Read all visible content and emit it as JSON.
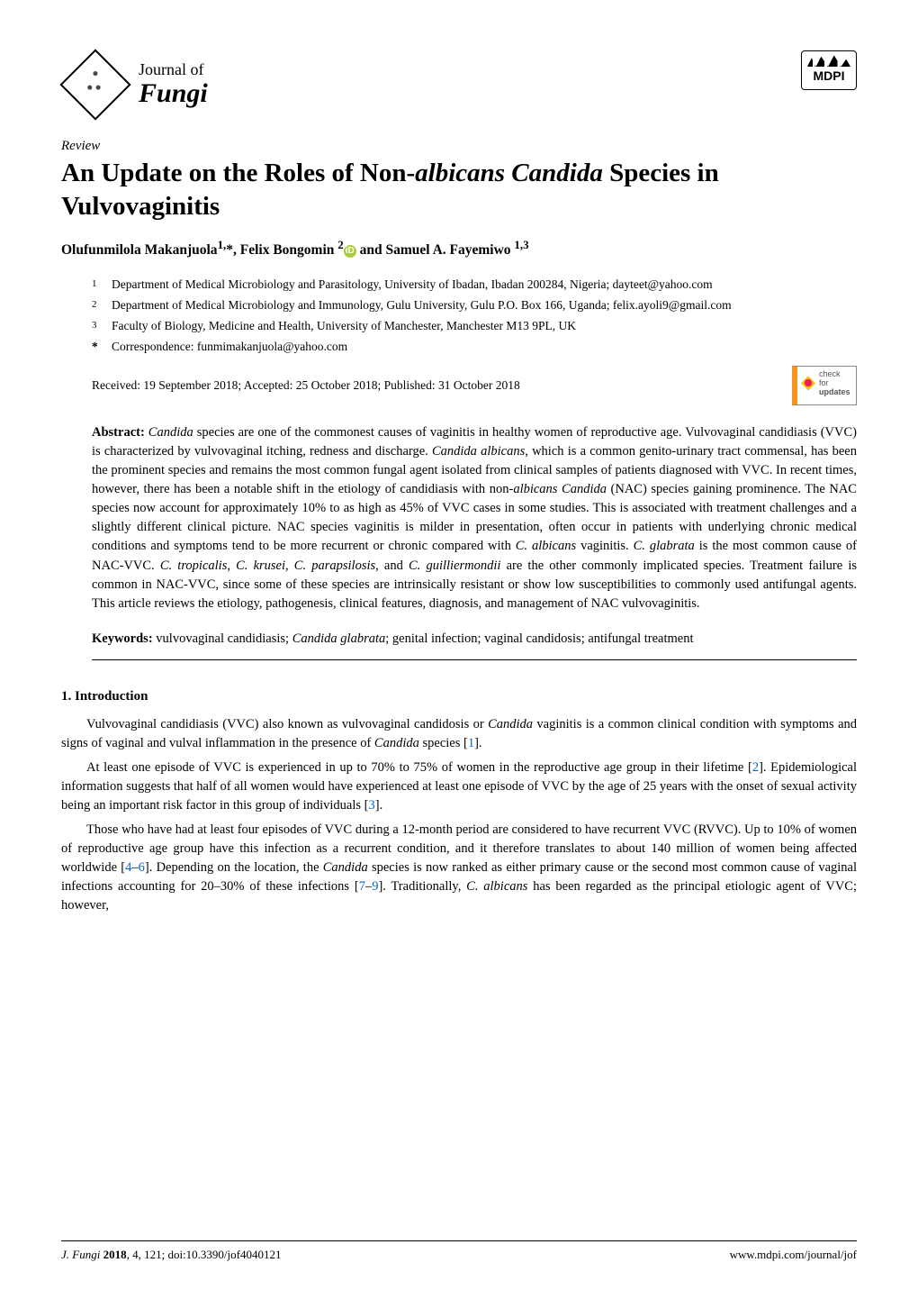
{
  "journal": {
    "prefix": "Journal of",
    "name": "Fungi",
    "publisher": "MDPI"
  },
  "article": {
    "type": "Review",
    "title_part1": "An Update on the Roles of Non-",
    "title_italic": "albicans Candida",
    "title_part2": "Species in Vulvovaginitis"
  },
  "authors": {
    "a1_name": "Olufunmilola Makanjuola",
    "a1_sup": "1,",
    "a1_star": "*",
    "a2_name": ", Felix Bongomin",
    "a2_sup": "2",
    "a3_name": " and Samuel A. Fayemiwo",
    "a3_sup": "1,3"
  },
  "affiliations": {
    "n1": "1",
    "t1": "Department of Medical Microbiology and Parasitology, University of Ibadan, Ibadan 200284, Nigeria; dayteet@yahoo.com",
    "n2": "2",
    "t2": "Department of Medical Microbiology and Immunology, Gulu University, Gulu P.O. Box 166, Uganda; felix.ayoli9@gmail.com",
    "n3": "3",
    "t3": "Faculty of Biology, Medicine and Health, University of Manchester, Manchester M13 9PL, UK",
    "corr_star": "*",
    "corr_text": "Correspondence: funmimakanjuola@yahoo.com"
  },
  "dates": "Received: 19 September 2018; Accepted: 25 October 2018; Published: 31 October 2018",
  "check_updates": {
    "line1": "check for",
    "line2": "updates"
  },
  "abstract": {
    "label": "Abstract:",
    "text_html": " <i>Candida</i> species are one of the commonest causes of vaginitis in healthy women of reproductive age. Vulvovaginal candidiasis (VVC) is characterized by vulvovaginal itching, redness and discharge. <i>Candida albicans</i>, which is a common genito-urinary tract commensal, has been the prominent species and remains the most common fungal agent isolated from clinical samples of patients diagnosed with VVC. In recent times, however, there has been a notable shift in the etiology of candidiasis with non-<i>albicans Candida</i> (NAC) species gaining prominence. The NAC species now account for approximately 10% to as high as 45% of VVC cases in some studies. This is associated with treatment challenges and a slightly different clinical picture. NAC species vaginitis is milder in presentation, often occur in patients with underlying chronic medical conditions and symptoms tend to be more recurrent or chronic compared with <i>C. albicans</i> vaginitis. <i>C. glabrata</i> is the most common cause of NAC-VVC. <i>C. tropicalis</i>, <i>C. krusei</i>, <i>C. parapsilosis</i>, and <i>C. guilliermondii</i> are the other commonly implicated species. Treatment failure is common in NAC-VVC, since some of these species are intrinsically resistant or show low susceptibilities to commonly used antifungal agents. This article reviews the etiology, pathogenesis, clinical features, diagnosis, and management of NAC vulvovaginitis."
  },
  "keywords": {
    "label": "Keywords:",
    "text_html": " vulvovaginal candidiasis; <i>Candida glabrata</i>; genital infection; vaginal candidosis; antifungal treatment"
  },
  "section1": {
    "heading": "1. Introduction",
    "p1_html": "Vulvovaginal candidiasis (VVC) also known as vulvovaginal candidosis or <i>Candida</i> vaginitis is a common clinical condition with symptoms and signs of vaginal and vulval inflammation in the presence of <i>Candida</i> species [<span class=\"ref-link\">1</span>].",
    "p2_html": "At least one episode of VVC is experienced in up to 70% to 75% of women in the reproductive age group in their lifetime [<span class=\"ref-link\">2</span>]. Epidemiological information suggests that half of all women would have experienced at least one episode of VVC by the age of 25 years with the onset of sexual activity being an important risk factor in this group of individuals [<span class=\"ref-link\">3</span>].",
    "p3_html": "Those who have had at least four episodes of VVC during a 12-month period are considered to have recurrent VVC (RVVC). Up to 10% of women of reproductive age group have this infection as a recurrent condition, and it therefore translates to about 140 million of women being affected worldwide [<span class=\"ref-link\">4</span>–<span class=\"ref-link\">6</span>]. Depending on the location, the <i>Candida</i> species is now ranked as either primary cause or the second most common cause of vaginal infections accounting for 20–30% of these infections [<span class=\"ref-link\">7</span>–<span class=\"ref-link\">9</span>]. Traditionally, <i>C. albicans</i> has been regarded as the principal etiologic agent of VVC; however,"
  },
  "footer": {
    "left_italic": "J. Fungi ",
    "left_bold": "2018",
    "left_rest": ", 4, 121; doi:10.3390/jof4040121",
    "right": "www.mdpi.com/journal/jof"
  },
  "colors": {
    "ref_link": "#0066cc",
    "orcid": "#a6ce39",
    "orange": "#f7931e"
  }
}
